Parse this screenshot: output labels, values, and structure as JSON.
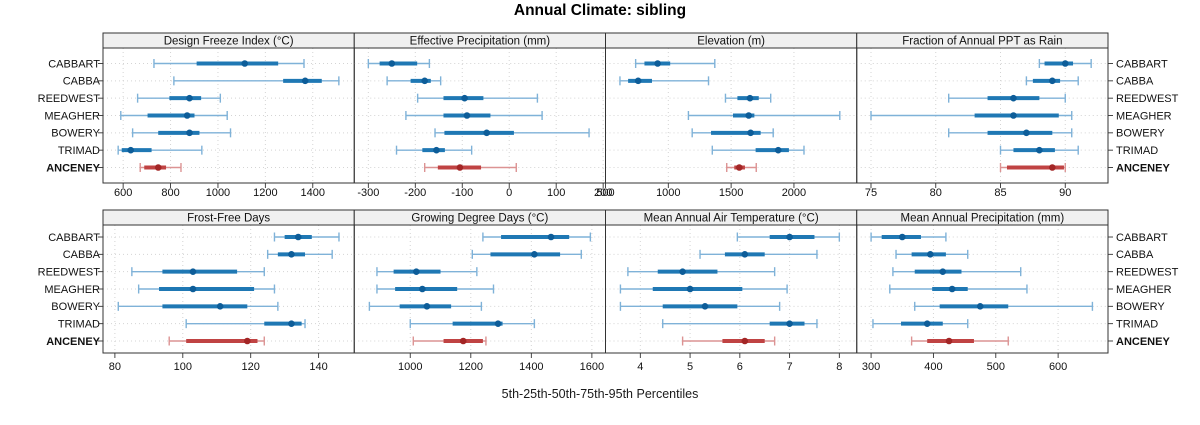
{
  "title": "Annual Climate: sibling",
  "caption": "5th-25th-50th-75th-95th Percentiles",
  "stations": [
    "CABBART",
    "CABBA",
    "REEDWEST",
    "MEAGHER",
    "BOWERY",
    "TRIMAD",
    "ANCENEY"
  ],
  "highlight_station": "ANCENEY",
  "percentiles": [
    "5th",
    "25th",
    "50th",
    "75th",
    "95th"
  ],
  "colors": {
    "blue_line": "#7fb2d8",
    "blue_band": "#1f78b4",
    "blue_dot": "#0d5d99",
    "red_line": "#dc9393",
    "red_band": "#c04343",
    "red_dot": "#a32626",
    "grid": "#d4d4d4",
    "border": "#333333",
    "axis": "#333333",
    "strip_bg": "#f0f0f0"
  },
  "chart_data": [
    {
      "type": "dotplot",
      "title": "Design Freeze Index (°C)",
      "xlim": [
        515,
        1575
      ],
      "ticks": [
        600,
        800,
        1000,
        1200,
        1400
      ],
      "series": [
        {
          "name": "CABBART",
          "values": [
            730,
            910,
            1113,
            1254,
            1363
          ]
        },
        {
          "name": "CABBA",
          "values": [
            814,
            1275,
            1368,
            1438,
            1510
          ]
        },
        {
          "name": "REEDWEST",
          "values": [
            661,
            795,
            880,
            929,
            1010
          ]
        },
        {
          "name": "MEAGHER",
          "values": [
            590,
            703,
            870,
            901,
            1039
          ]
        },
        {
          "name": "BOWERY",
          "values": [
            640,
            748,
            880,
            922,
            1053
          ]
        },
        {
          "name": "TRIMAD",
          "values": [
            579,
            594,
            632,
            720,
            932
          ]
        },
        {
          "name": "ANCENEY",
          "values": [
            672,
            689,
            748,
            781,
            844
          ]
        }
      ]
    },
    {
      "type": "dotplot",
      "title": "Effective Precipitation (mm)",
      "xlim": [
        -330,
        205
      ],
      "ticks": [
        -300,
        -200,
        -100,
        0,
        100,
        200
      ],
      "series": [
        {
          "name": "CABBART",
          "values": [
            -300,
            -276,
            -250,
            -196,
            -170
          ]
        },
        {
          "name": "CABBA",
          "values": [
            -260,
            -210,
            -180,
            -167,
            -146
          ]
        },
        {
          "name": "REEDWEST",
          "values": [
            -195,
            -140,
            -95,
            -55,
            60
          ]
        },
        {
          "name": "MEAGHER",
          "values": [
            -220,
            -140,
            -90,
            -40,
            70
          ]
        },
        {
          "name": "BOWERY",
          "values": [
            -158,
            -138,
            -48,
            10,
            170
          ]
        },
        {
          "name": "TRIMAD",
          "values": [
            -240,
            -185,
            -155,
            -137,
            -80
          ]
        },
        {
          "name": "ANCENEY",
          "values": [
            -180,
            -152,
            -105,
            -60,
            15
          ]
        }
      ]
    },
    {
      "type": "dotplot",
      "title": "Elevation (m)",
      "xlim": [
        500,
        2500
      ],
      "ticks": [
        500,
        1000,
        1500,
        2000
      ],
      "series": [
        {
          "name": "CABBART",
          "values": [
            740,
            810,
            915,
            1015,
            1370
          ]
        },
        {
          "name": "CABBA",
          "values": [
            615,
            680,
            760,
            870,
            1320
          ]
        },
        {
          "name": "REEDWEST",
          "values": [
            1455,
            1550,
            1650,
            1720,
            1815
          ]
        },
        {
          "name": "MEAGHER",
          "values": [
            1160,
            1515,
            1640,
            1685,
            2365
          ]
        },
        {
          "name": "BOWERY",
          "values": [
            1190,
            1340,
            1655,
            1735,
            1835
          ]
        },
        {
          "name": "TRIMAD",
          "values": [
            1350,
            1695,
            1875,
            1960,
            2080
          ]
        },
        {
          "name": "ANCENEY",
          "values": [
            1465,
            1525,
            1565,
            1610,
            1700
          ]
        }
      ]
    },
    {
      "type": "dotplot",
      "title": "Fraction of Annual PPT as Rain",
      "xlim": [
        73.9,
        93.3
      ],
      "ticks": [
        75,
        80,
        85,
        90
      ],
      "series": [
        {
          "name": "CABBART",
          "values": [
            88,
            88.4,
            90,
            90.6,
            92
          ]
        },
        {
          "name": "CABBA",
          "values": [
            87,
            87.5,
            89,
            89.6,
            91
          ]
        },
        {
          "name": "REEDWEST",
          "values": [
            81,
            84,
            86,
            88,
            90
          ]
        },
        {
          "name": "MEAGHER",
          "values": [
            75,
            83,
            86,
            89.5,
            90.5
          ]
        },
        {
          "name": "BOWERY",
          "values": [
            81,
            84,
            87,
            89,
            90.5
          ]
        },
        {
          "name": "TRIMAD",
          "values": [
            85,
            86,
            88,
            89.2,
            91
          ]
        },
        {
          "name": "ANCENEY",
          "values": [
            85,
            85.5,
            89,
            89.9,
            90
          ]
        }
      ]
    },
    {
      "type": "dotplot",
      "title": "Frost-Free Days",
      "xlim": [
        76.5,
        150.5
      ],
      "ticks": [
        80,
        100,
        120,
        140
      ],
      "series": [
        {
          "name": "CABBART",
          "values": [
            127,
            130,
            134,
            138,
            146
          ]
        },
        {
          "name": "CABBA",
          "values": [
            125,
            128,
            132,
            136,
            144
          ]
        },
        {
          "name": "REEDWEST",
          "values": [
            85,
            94,
            103,
            116,
            124
          ]
        },
        {
          "name": "MEAGHER",
          "values": [
            87,
            93,
            103,
            121,
            127
          ]
        },
        {
          "name": "BOWERY",
          "values": [
            81,
            94,
            111,
            119,
            128
          ]
        },
        {
          "name": "TRIMAD",
          "values": [
            101,
            124,
            132,
            135,
            136
          ]
        },
        {
          "name": "ANCENEY",
          "values": [
            96,
            101,
            119,
            122,
            124
          ]
        }
      ]
    },
    {
      "type": "dotplot",
      "title": "Growing Degree Days (°C)",
      "xlim": [
        815,
        1645
      ],
      "ticks": [
        1000,
        1200,
        1400,
        1600
      ],
      "series": [
        {
          "name": "CABBART",
          "values": [
            1240,
            1300,
            1465,
            1525,
            1595
          ]
        },
        {
          "name": "CABBA",
          "values": [
            1205,
            1265,
            1410,
            1495,
            1565
          ]
        },
        {
          "name": "REEDWEST",
          "values": [
            890,
            945,
            1020,
            1100,
            1220
          ]
        },
        {
          "name": "MEAGHER",
          "values": [
            890,
            950,
            1040,
            1155,
            1275
          ]
        },
        {
          "name": "BOWERY",
          "values": [
            865,
            965,
            1055,
            1135,
            1235
          ]
        },
        {
          "name": "TRIMAD",
          "values": [
            1000,
            1140,
            1290,
            1305,
            1410
          ]
        },
        {
          "name": "ANCENEY",
          "values": [
            1010,
            1110,
            1175,
            1240,
            1250
          ]
        }
      ]
    },
    {
      "type": "dotplot",
      "title": "Mean Annual Air Temperature (°C)",
      "xlim": [
        3.3,
        8.35
      ],
      "ticks": [
        4,
        5,
        6,
        7,
        8
      ],
      "series": [
        {
          "name": "CABBART",
          "values": [
            5.95,
            6.6,
            7.0,
            7.5,
            8.0
          ]
        },
        {
          "name": "CABBA",
          "values": [
            5.2,
            5.7,
            6.1,
            6.5,
            7.55
          ]
        },
        {
          "name": "REEDWEST",
          "values": [
            3.75,
            4.35,
            4.85,
            5.55,
            6.7
          ]
        },
        {
          "name": "MEAGHER",
          "values": [
            3.6,
            4.25,
            5.0,
            6.05,
            6.95
          ]
        },
        {
          "name": "BOWERY",
          "values": [
            3.6,
            4.45,
            5.3,
            5.95,
            6.8
          ]
        },
        {
          "name": "TRIMAD",
          "values": [
            4.45,
            6.6,
            7.0,
            7.3,
            7.55
          ]
        },
        {
          "name": "ANCENEY",
          "values": [
            4.85,
            5.65,
            6.1,
            6.5,
            6.7
          ]
        }
      ]
    },
    {
      "type": "dotplot",
      "title": "Mean Annual Precipitation (mm)",
      "xlim": [
        277,
        680
      ],
      "ticks": [
        300,
        400,
        500,
        600
      ],
      "series": [
        {
          "name": "CABBART",
          "values": [
            300,
            317,
            350,
            380,
            420
          ]
        },
        {
          "name": "CABBA",
          "values": [
            340,
            365,
            395,
            420,
            455
          ]
        },
        {
          "name": "REEDWEST",
          "values": [
            335,
            370,
            415,
            445,
            540
          ]
        },
        {
          "name": "MEAGHER",
          "values": [
            330,
            398,
            430,
            455,
            550
          ]
        },
        {
          "name": "BOWERY",
          "values": [
            370,
            410,
            475,
            520,
            655
          ]
        },
        {
          "name": "TRIMAD",
          "values": [
            303,
            348,
            390,
            415,
            455
          ]
        },
        {
          "name": "ANCENEY",
          "values": [
            365,
            390,
            425,
            465,
            520
          ]
        }
      ]
    }
  ]
}
